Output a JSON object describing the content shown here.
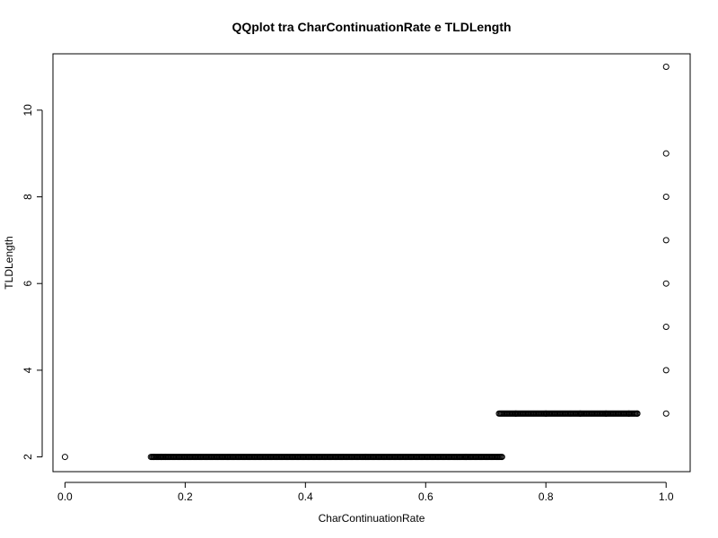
{
  "chart_data": {
    "type": "scatter",
    "title": "QQplot tra CharContinuationRate e TLDLength",
    "xlabel": "CharContinuationRate",
    "ylabel": "TLDLength",
    "xlim": [
      -0.02,
      1.04
    ],
    "ylim": [
      1.66,
      11.3
    ],
    "xticks": [
      0.0,
      0.2,
      0.4,
      0.6,
      0.8,
      1.0
    ],
    "xtick_labels": [
      "0.0",
      "0.2",
      "0.4",
      "0.6",
      "0.8",
      "1.0"
    ],
    "yticks": [
      2,
      4,
      6,
      8,
      10
    ],
    "ytick_labels": [
      "2",
      "4",
      "6",
      "8",
      "10"
    ],
    "grid": false,
    "marker": "open-circle",
    "segments": [
      {
        "y": 2,
        "x_from": 0.145,
        "x_to": 0.727
      },
      {
        "y": 3,
        "x_from": 0.722,
        "x_to": 0.952
      }
    ],
    "points": [
      [
        0.0,
        2
      ],
      [
        0.143,
        2
      ],
      [
        0.148,
        2
      ],
      [
        0.16,
        2
      ],
      [
        0.167,
        2
      ],
      [
        0.5,
        2
      ],
      [
        0.667,
        2
      ],
      [
        0.75,
        3
      ],
      [
        0.8,
        3
      ],
      [
        0.857,
        3
      ],
      [
        0.9,
        3
      ],
      [
        0.938,
        3
      ],
      [
        0.952,
        3
      ],
      [
        1.0,
        3
      ],
      [
        1.0,
        4
      ],
      [
        1.0,
        5
      ],
      [
        1.0,
        6
      ],
      [
        1.0,
        7
      ],
      [
        1.0,
        8
      ],
      [
        1.0,
        9
      ],
      [
        1.0,
        11
      ]
    ]
  }
}
